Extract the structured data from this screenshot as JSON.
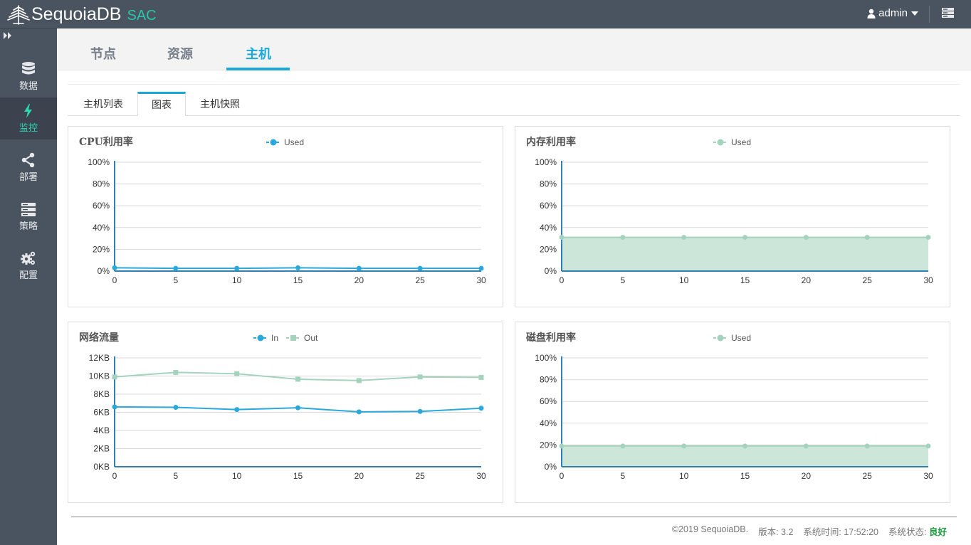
{
  "app": {
    "name": "SequoiaDB",
    "suffix": "SAC"
  },
  "user": {
    "name": "admin"
  },
  "sidebar": {
    "items": [
      {
        "label": "数据",
        "icon": "database-icon",
        "active": false
      },
      {
        "label": "监控",
        "icon": "bolt-icon",
        "active": true
      },
      {
        "label": "部署",
        "icon": "share-icon",
        "active": false
      },
      {
        "label": "策略",
        "icon": "server-icon",
        "active": false
      },
      {
        "label": "配置",
        "icon": "gears-icon",
        "active": false
      }
    ]
  },
  "tabs": [
    {
      "label": "节点",
      "active": false
    },
    {
      "label": "资源",
      "active": false
    },
    {
      "label": "主机",
      "active": true
    }
  ],
  "subtabs": [
    {
      "label": "主机列表",
      "active": false
    },
    {
      "label": "图表",
      "active": true
    },
    {
      "label": "主机快照",
      "active": false
    }
  ],
  "colors": {
    "accent": "#1ba8d8",
    "series_blue": "#2aa8dc",
    "series_green": "#a3d3bd",
    "area_green": "#cde6da"
  },
  "chart_data": [
    {
      "type": "line",
      "title": "CPU利用率",
      "x": [
        0,
        5,
        10,
        15,
        20,
        25,
        30
      ],
      "xlim": [
        0,
        30
      ],
      "ylim": [
        0,
        100
      ],
      "yticks": [
        "0%",
        "20%",
        "40%",
        "60%",
        "80%",
        "100%"
      ],
      "grid": true,
      "legend": "top-center",
      "series": [
        {
          "name": "Used",
          "values": [
            3,
            2.5,
            2.5,
            3,
            2.5,
            2.5,
            2.5
          ],
          "color": "#2aa8dc",
          "marker": "circle",
          "fill": false
        }
      ]
    },
    {
      "type": "area",
      "title": "内存利用率",
      "x": [
        0,
        5,
        10,
        15,
        20,
        25,
        30
      ],
      "xlim": [
        0,
        30
      ],
      "ylim": [
        0,
        100
      ],
      "yticks": [
        "0%",
        "20%",
        "40%",
        "60%",
        "80%",
        "100%"
      ],
      "grid": true,
      "legend": "top-center",
      "series": [
        {
          "name": "Used",
          "values": [
            31,
            31,
            31,
            31,
            31,
            31,
            31
          ],
          "color": "#a3d3bd",
          "marker": "circle",
          "fill": true
        }
      ]
    },
    {
      "type": "line",
      "title": "网络流量",
      "x": [
        0,
        5,
        10,
        15,
        20,
        25,
        30
      ],
      "xlim": [
        0,
        30
      ],
      "ylim": [
        0,
        12
      ],
      "yticks": [
        "0KB",
        "2KB",
        "4KB",
        "6KB",
        "8KB",
        "10KB",
        "12KB"
      ],
      "grid": true,
      "legend": "top-center",
      "series": [
        {
          "name": "In",
          "values": [
            6.6,
            6.55,
            6.3,
            6.5,
            6.05,
            6.1,
            6.45
          ],
          "color": "#2aa8dc",
          "marker": "circle",
          "fill": false
        },
        {
          "name": "Out",
          "values": [
            9.9,
            10.4,
            10.25,
            9.65,
            9.5,
            9.9,
            9.85
          ],
          "color": "#a3d3bd",
          "marker": "square",
          "fill": false
        }
      ]
    },
    {
      "type": "area",
      "title": "磁盘利用率",
      "x": [
        0,
        5,
        10,
        15,
        20,
        25,
        30
      ],
      "xlim": [
        0,
        30
      ],
      "ylim": [
        0,
        100
      ],
      "yticks": [
        "0%",
        "20%",
        "40%",
        "60%",
        "80%",
        "100%"
      ],
      "grid": true,
      "legend": "top-center",
      "series": [
        {
          "name": "Used",
          "values": [
            19,
            19,
            19,
            19,
            19,
            19,
            19
          ],
          "color": "#a3d3bd",
          "marker": "circle",
          "fill": true
        }
      ]
    }
  ],
  "footer": {
    "copyright": "©2019 SequoiaDB.",
    "version": "版本: 3.2",
    "time": "系统时间: 17:52:20",
    "status_label": "系统状态:",
    "status_value": "良好"
  }
}
